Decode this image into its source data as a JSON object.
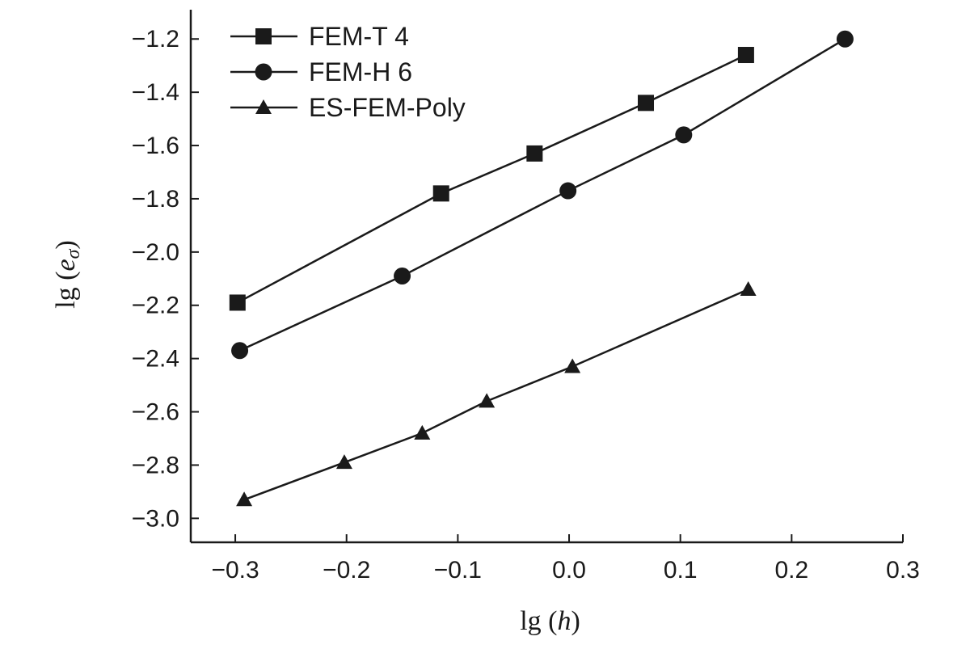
{
  "chart_data": {
    "type": "line",
    "xlabel": {
      "prefix": "lg (",
      "var": "h",
      "suffix": ")"
    },
    "ylabel": {
      "prefix": "lg (",
      "var": "e",
      "sub": "σ",
      "suffix": ")"
    },
    "xlim": [
      -0.34,
      0.3
    ],
    "ylim": [
      -3.09,
      -1.09
    ],
    "xticks": [
      -0.3,
      -0.2,
      -0.1,
      0.0,
      0.1,
      0.2,
      0.3
    ],
    "xtick_labels": [
      "−0.3",
      "−0.2",
      "−0.1",
      "0.0",
      "0.1",
      "0.2",
      "0.3"
    ],
    "yticks": [
      -3.0,
      -2.8,
      -2.6,
      -2.4,
      -2.2,
      -2.0,
      -1.8,
      -1.6,
      -1.4,
      -1.2
    ],
    "ytick_labels": [
      "−3.0",
      "−2.8",
      "−2.6",
      "−2.4",
      "−2.2",
      "−2.0",
      "−1.8",
      "−1.6",
      "−1.4",
      "−1.2"
    ],
    "grid": false,
    "legend_position": "top-left",
    "series": [
      {
        "name": "FEM-T 4",
        "marker": "square",
        "x": [
          -0.298,
          -0.115,
          -0.031,
          0.069,
          0.159
        ],
        "y": [
          -2.19,
          -1.78,
          -1.63,
          -1.44,
          -1.26
        ]
      },
      {
        "name": "FEM-H 6",
        "marker": "circle",
        "x": [
          -0.296,
          -0.15,
          -0.001,
          0.103,
          0.248
        ],
        "y": [
          -2.37,
          -2.09,
          -1.77,
          -1.56,
          -1.2
        ]
      },
      {
        "name": "ES-FEM-Poly",
        "marker": "triangle",
        "x": [
          -0.292,
          -0.202,
          -0.132,
          -0.074,
          0.003,
          0.161
        ],
        "y": [
          -2.93,
          -2.79,
          -2.68,
          -2.56,
          -2.43,
          -2.14
        ]
      }
    ]
  }
}
